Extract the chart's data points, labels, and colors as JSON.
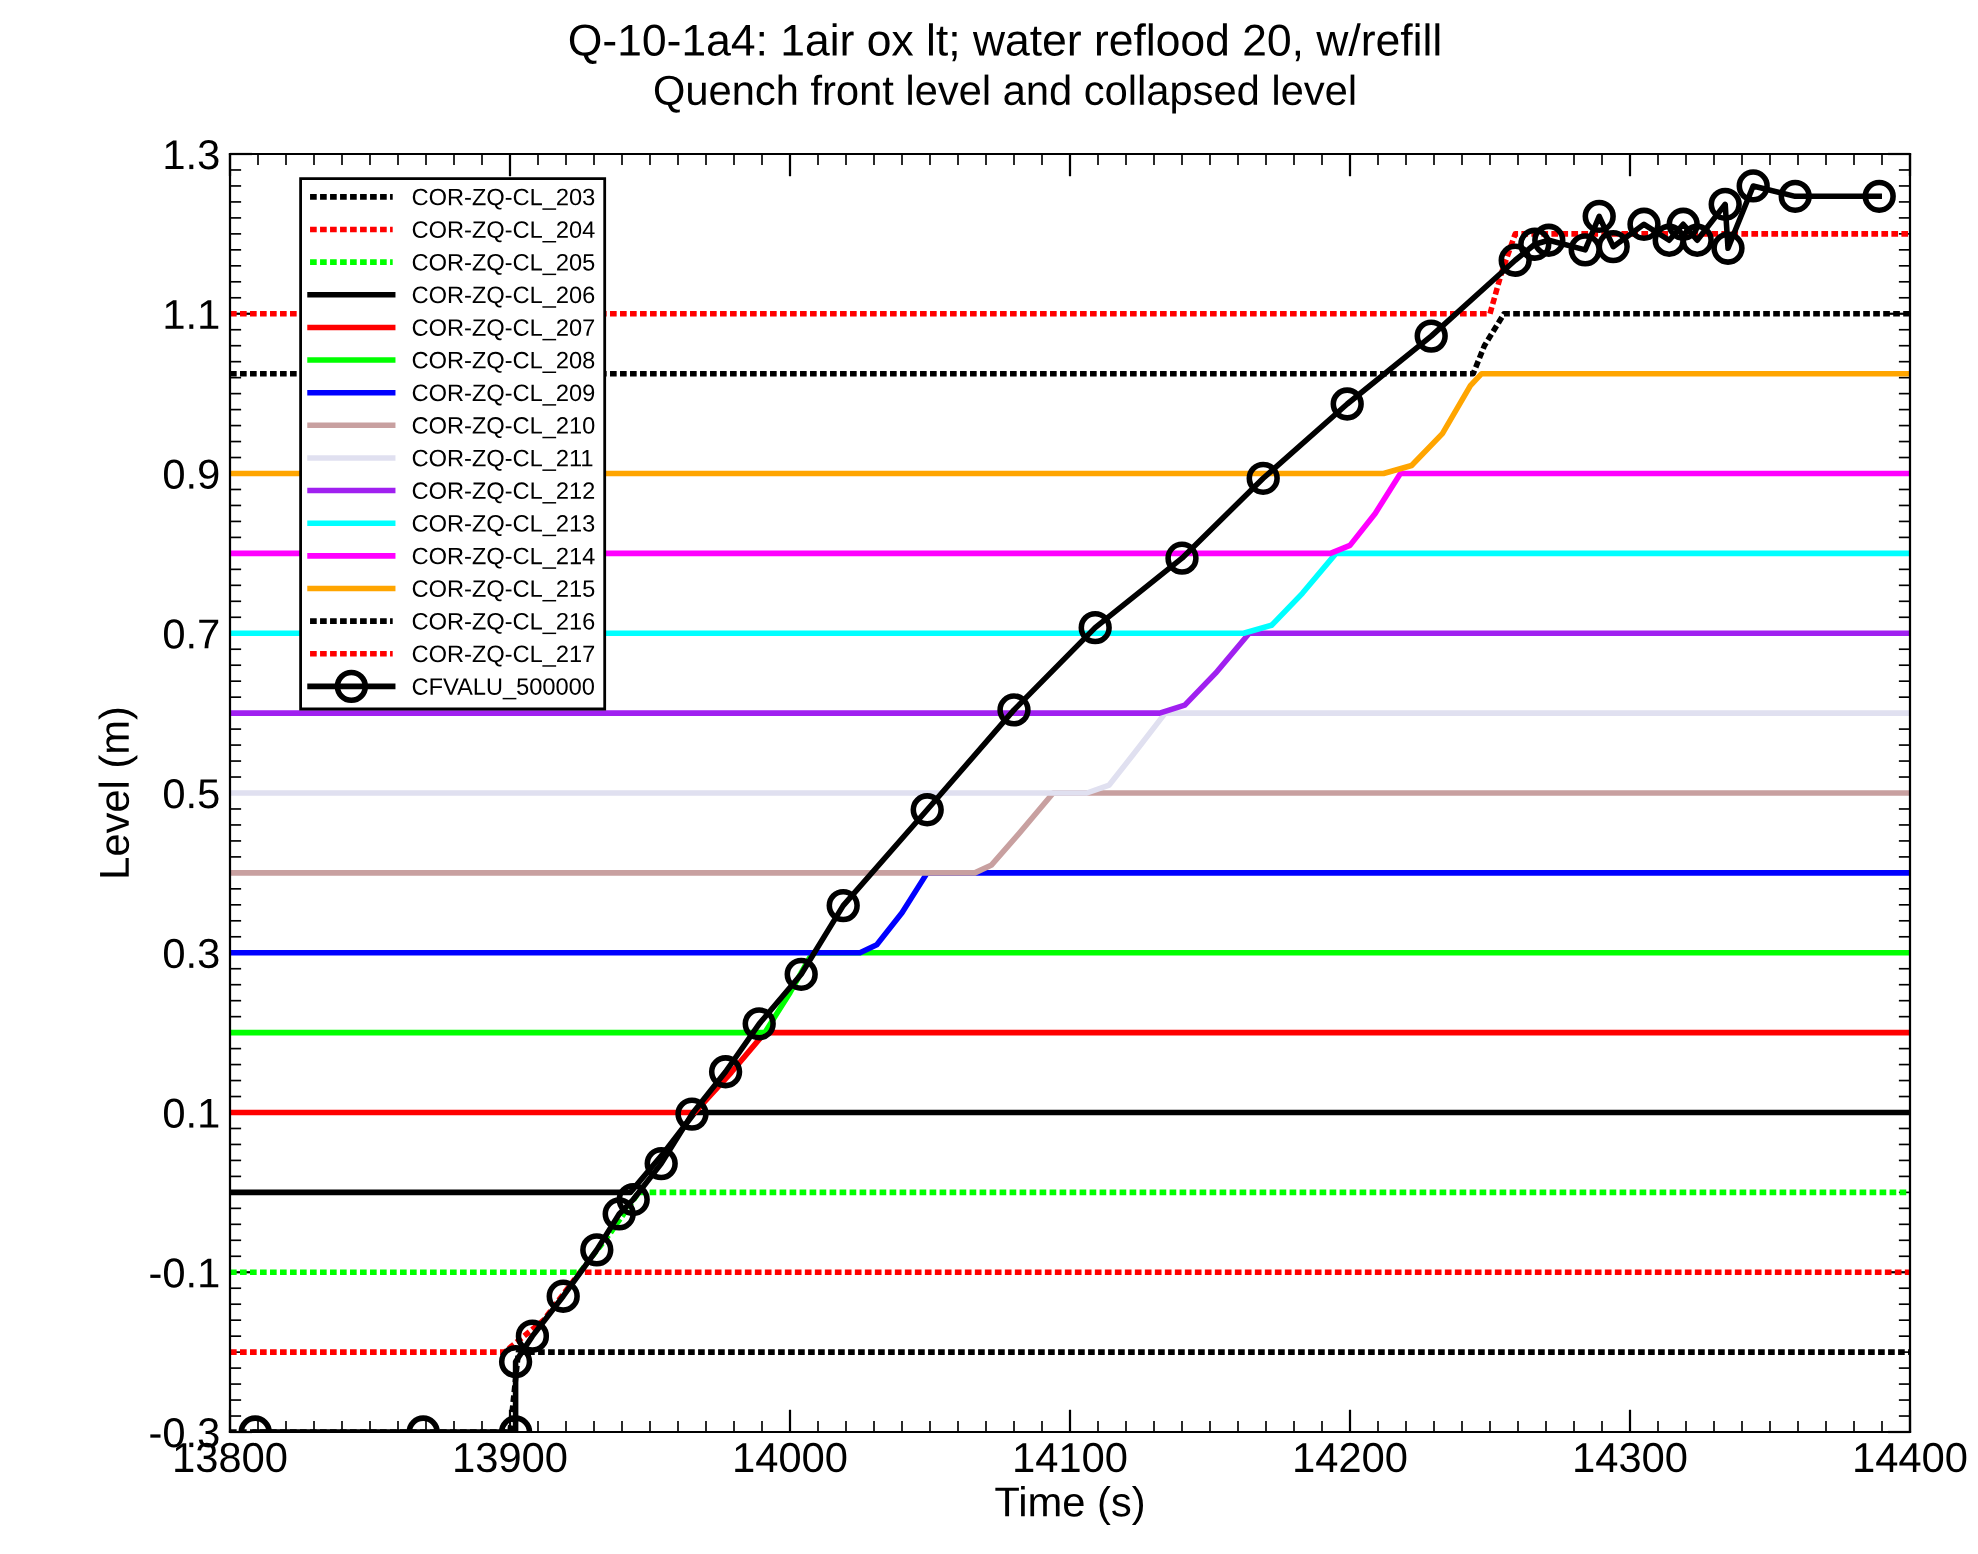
{
  "chart_data": {
    "type": "line",
    "title": "Q-10-1a4: 1air ox lt; water reflood 20, w/refill",
    "subtitle": "Quench front level and collapsed level",
    "xlabel": "Time (s)",
    "ylabel": "Level (m)",
    "xlim": [
      13800,
      14400
    ],
    "xticks": [
      13800,
      13900,
      14000,
      14100,
      14200,
      14300,
      14400
    ],
    "ylim": [
      -0.3,
      1.3
    ],
    "yticks": [
      -0.3,
      -0.1,
      0.1,
      0.3,
      0.5,
      0.7,
      0.9,
      1.1,
      1.3
    ],
    "grid": false,
    "legend": "top left",
    "series": [
      {
        "name": "COR-ZQ-CL_203",
        "color": "#000000",
        "line_style": "dotted",
        "x": [
          13800,
          13900,
          13903,
          14400
        ],
        "values": [
          -0.3,
          -0.3,
          -0.2,
          -0.2
        ]
      },
      {
        "name": "COR-ZQ-CL_204",
        "color": "#ff0000",
        "line_style": "dotted",
        "x": [
          13800,
          13898,
          13912,
          13925,
          14400
        ],
        "values": [
          -0.2,
          -0.2,
          -0.16,
          -0.1,
          -0.1
        ]
      },
      {
        "name": "COR-ZQ-CL_205",
        "color": "#00ff00",
        "line_style": "dotted",
        "x": [
          13800,
          13925,
          13936,
          13946,
          14400
        ],
        "values": [
          -0.1,
          -0.1,
          -0.05,
          0.0,
          0.0
        ]
      },
      {
        "name": "COR-ZQ-CL_206",
        "color": "#000000",
        "line_style": "solid",
        "x": [
          13800,
          13943,
          13955,
          13966,
          14400
        ],
        "values": [
          0.0,
          0.0,
          0.05,
          0.1,
          0.1
        ]
      },
      {
        "name": "COR-ZQ-CL_207",
        "color": "#ff0000",
        "line_style": "solid",
        "x": [
          13800,
          13966,
          13979,
          13991,
          14400
        ],
        "values": [
          0.1,
          0.1,
          0.15,
          0.2,
          0.2
        ]
      },
      {
        "name": "COR-ZQ-CL_208",
        "color": "#00ff00",
        "line_style": "solid",
        "x": [
          13800,
          13991,
          14000,
          14008,
          14400
        ],
        "values": [
          0.2,
          0.2,
          0.25,
          0.3,
          0.3
        ]
      },
      {
        "name": "COR-ZQ-CL_209",
        "color": "#0000ff",
        "line_style": "solid",
        "x": [
          13800,
          14025,
          14031,
          14040,
          14049,
          14400
        ],
        "values": [
          0.3,
          0.3,
          0.31,
          0.35,
          0.4,
          0.4
        ]
      },
      {
        "name": "COR-ZQ-CL_210",
        "color": "#c8a0a0",
        "line_style": "solid",
        "x": [
          13800,
          14066,
          14072,
          14082,
          14094,
          14400
        ],
        "values": [
          0.4,
          0.4,
          0.41,
          0.45,
          0.5,
          0.5
        ]
      },
      {
        "name": "COR-ZQ-CL_211",
        "color": "#e0e0f0",
        "line_style": "solid",
        "x": [
          13800,
          14106,
          14114,
          14123,
          14134,
          14400
        ],
        "values": [
          0.5,
          0.5,
          0.51,
          0.55,
          0.6,
          0.6
        ]
      },
      {
        "name": "COR-ZQ-CL_212",
        "color": "#a020f0",
        "line_style": "solid",
        "x": [
          13800,
          14132,
          14141,
          14152,
          14164,
          14400
        ],
        "values": [
          0.6,
          0.6,
          0.61,
          0.65,
          0.7,
          0.7
        ]
      },
      {
        "name": "COR-ZQ-CL_213",
        "color": "#00ffff",
        "line_style": "solid",
        "x": [
          13800,
          14162,
          14172,
          14183,
          14195,
          14400
        ],
        "values": [
          0.7,
          0.7,
          0.71,
          0.75,
          0.8,
          0.8
        ]
      },
      {
        "name": "COR-ZQ-CL_214",
        "color": "#ff00ff",
        "line_style": "solid",
        "x": [
          13800,
          14193,
          14200,
          14209,
          14218,
          14400
        ],
        "values": [
          0.8,
          0.8,
          0.81,
          0.85,
          0.9,
          0.9
        ]
      },
      {
        "name": "COR-ZQ-CL_215",
        "color": "#ffa500",
        "line_style": "solid",
        "x": [
          13800,
          14212,
          14222,
          14233,
          14243,
          14247,
          14400
        ],
        "values": [
          0.9,
          0.9,
          0.91,
          0.95,
          1.01,
          1.025,
          1.025
        ]
      },
      {
        "name": "COR-ZQ-CL_216",
        "color": "#000000",
        "line_style": "dotted",
        "x": [
          13800,
          14244,
          14248,
          14255,
          14400
        ],
        "values": [
          1.025,
          1.025,
          1.06,
          1.1,
          1.1
        ]
      },
      {
        "name": "COR-ZQ-CL_217",
        "color": "#ff0000",
        "line_style": "dotted",
        "x": [
          13800,
          14250,
          14254,
          14259,
          14400
        ],
        "values": [
          1.1,
          1.1,
          1.15,
          1.2,
          1.2
        ]
      },
      {
        "name": "CFVALU_500000",
        "color": "#000000",
        "line_style": "solid",
        "marker": "circle",
        "x": [
          13809,
          13869,
          13902,
          13902,
          13908,
          13919,
          13931,
          13939,
          13944,
          13954,
          13965,
          13977,
          13989,
          14004,
          14019,
          14049,
          14080,
          14109,
          14140,
          14169,
          14199,
          14229,
          14259,
          14266,
          14271,
          14284,
          14289,
          14294,
          14305,
          14314,
          14319,
          14324,
          14334,
          14335,
          14344,
          14359,
          14389
        ],
        "values": [
          -0.3,
          -0.3,
          -0.3,
          -0.212,
          -0.18,
          -0.13,
          -0.072,
          -0.027,
          -0.009,
          0.036,
          0.098,
          0.151,
          0.211,
          0.273,
          0.359,
          0.479,
          0.604,
          0.707,
          0.794,
          0.894,
          0.987,
          1.072,
          1.167,
          1.187,
          1.192,
          1.18,
          1.222,
          1.184,
          1.212,
          1.192,
          1.212,
          1.192,
          1.237,
          1.182,
          1.26,
          1.247,
          1.247
        ]
      }
    ]
  }
}
